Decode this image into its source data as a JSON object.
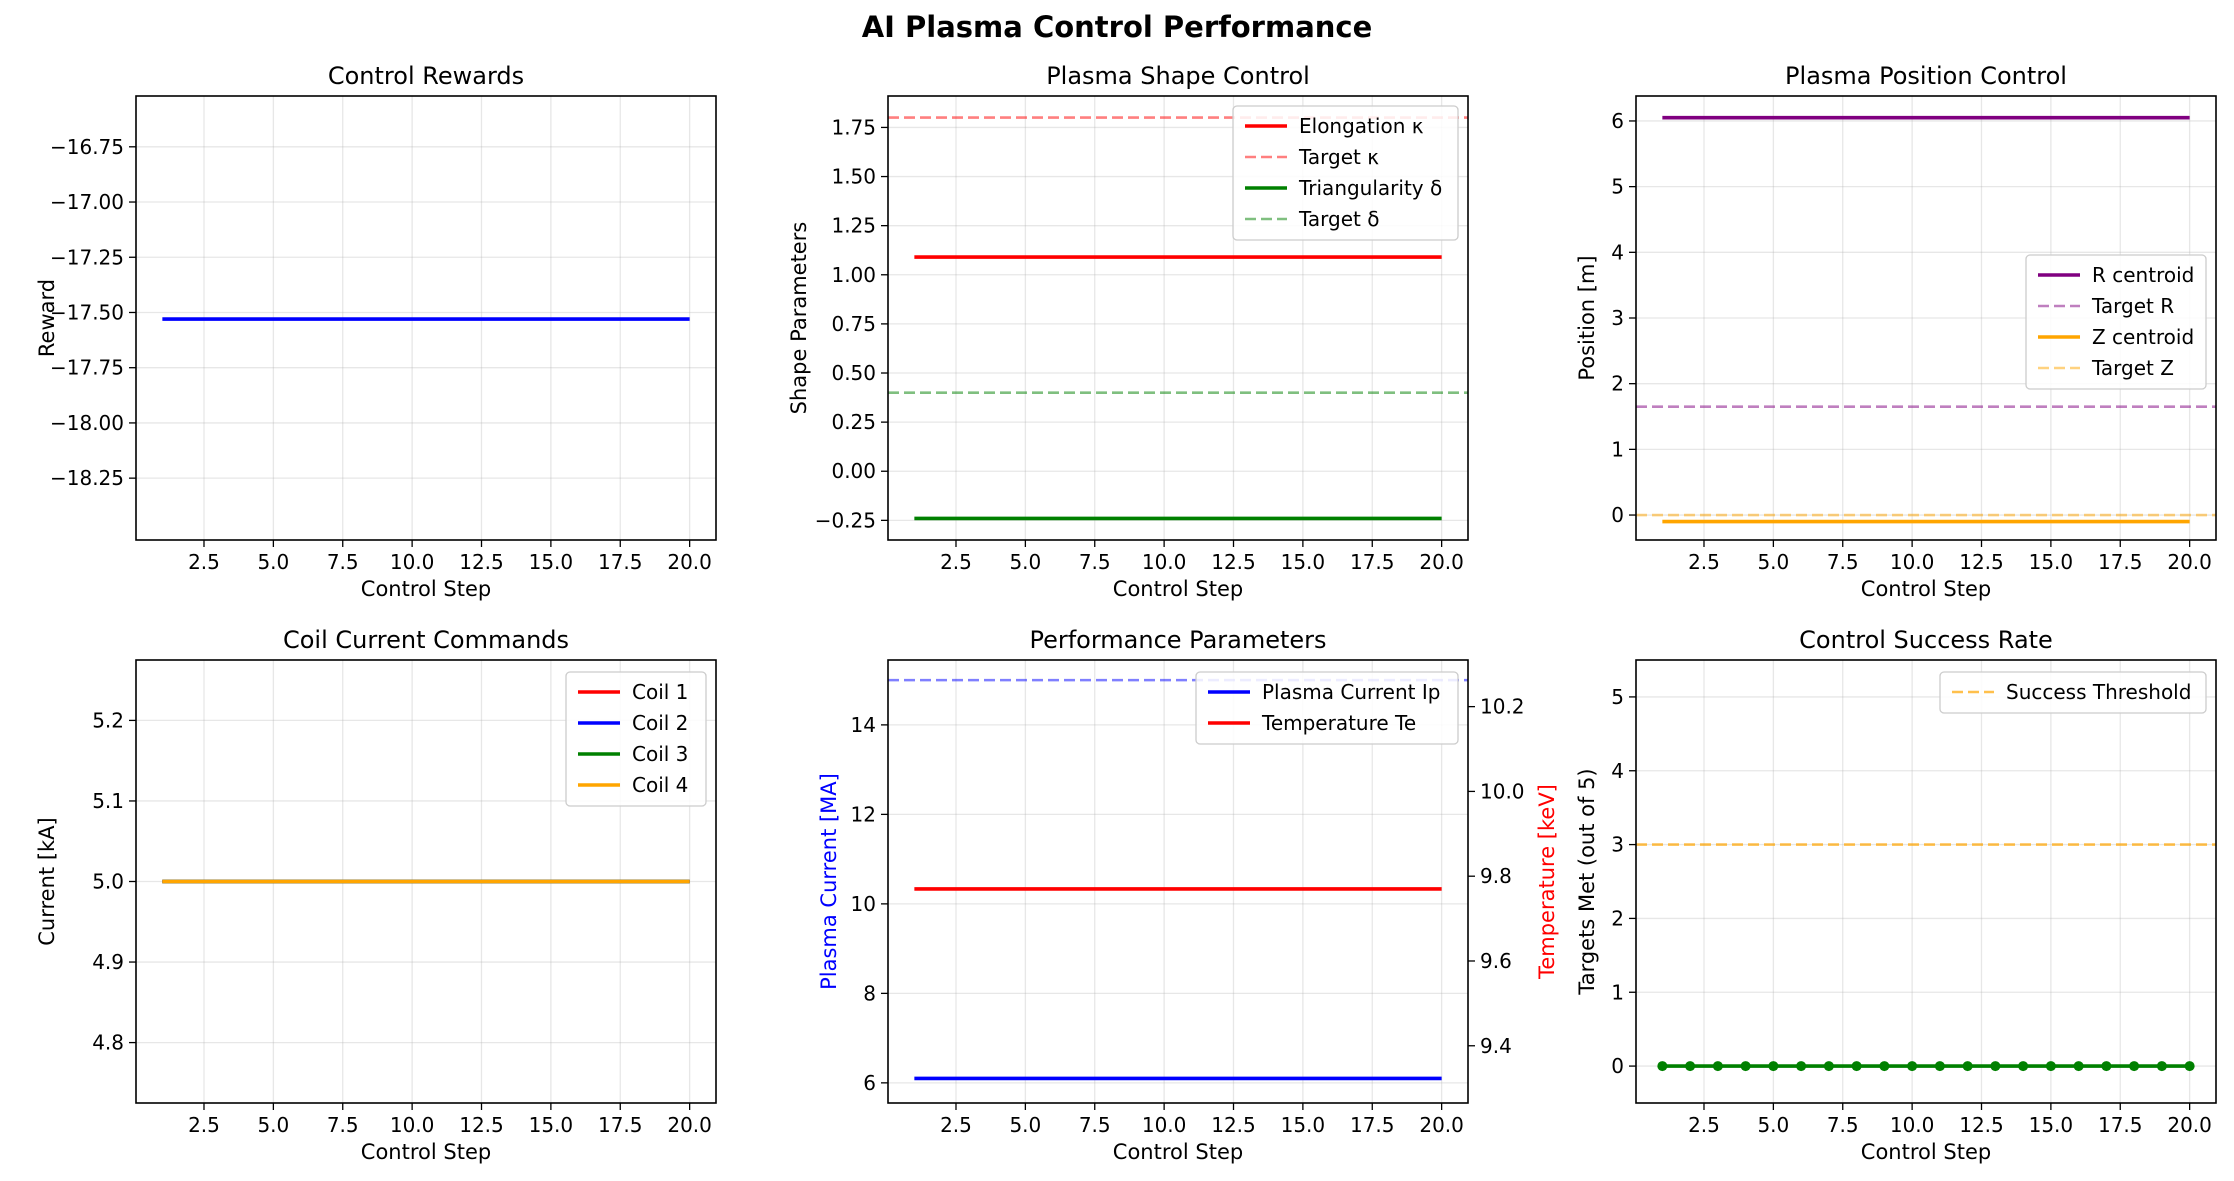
{
  "figure_title": "AI Plasma Control Performance",
  "chart_data": [
    {
      "type": "line",
      "title": "Control Rewards",
      "xlabel": "Control Step",
      "ylabel": "Reward",
      "xlim": [
        0.05,
        20.95
      ],
      "ylim": [
        -18.53,
        -16.52
      ],
      "xticks": [
        2.5,
        5.0,
        7.5,
        10.0,
        12.5,
        15.0,
        17.5,
        20.0
      ],
      "xtick_labels": [
        "2.5",
        "5.0",
        "7.5",
        "10.0",
        "12.5",
        "15.0",
        "17.5",
        "20.0"
      ],
      "yticks": [
        -18.25,
        -18.0,
        -17.75,
        -17.5,
        -17.25,
        -17.0,
        -16.75
      ],
      "ytick_labels": [
        "−18.25",
        "−18.00",
        "−17.75",
        "−17.50",
        "−17.25",
        "−17.00",
        "−16.75"
      ],
      "grid": true,
      "legend": null,
      "series": [
        {
          "color": "#0000ff",
          "style": "solid",
          "x": [
            1,
            20
          ],
          "y": [
            -17.53,
            -17.53
          ]
        }
      ]
    },
    {
      "type": "line",
      "title": "Plasma Shape Control",
      "xlabel": "Control Step",
      "ylabel": "Shape Parameters",
      "xlim": [
        0.05,
        20.95
      ],
      "ylim": [
        -0.35,
        1.91
      ],
      "xticks": [
        2.5,
        5.0,
        7.5,
        10.0,
        12.5,
        15.0,
        17.5,
        20.0
      ],
      "xtick_labels": [
        "2.5",
        "5.0",
        "7.5",
        "10.0",
        "12.5",
        "15.0",
        "17.5",
        "20.0"
      ],
      "yticks": [
        -0.25,
        0.0,
        0.25,
        0.5,
        0.75,
        1.0,
        1.25,
        1.5,
        1.75
      ],
      "ytick_labels": [
        "−0.25",
        "0.00",
        "0.25",
        "0.50",
        "0.75",
        "1.00",
        "1.25",
        "1.50",
        "1.75"
      ],
      "grid": true,
      "legend": "upper right",
      "series": [
        {
          "name": "Elongation κ",
          "color": "#ff0000",
          "style": "solid",
          "x": [
            1,
            20
          ],
          "y": [
            1.09,
            1.09
          ]
        },
        {
          "name": "Target κ",
          "color": "#ff0000",
          "style": "dashed",
          "alpha": 0.5,
          "hline": 1.8
        },
        {
          "name": "Triangularity δ",
          "color": "#008000",
          "style": "solid",
          "x": [
            1,
            20
          ],
          "y": [
            -0.24,
            -0.24
          ]
        },
        {
          "name": "Target δ",
          "color": "#008000",
          "style": "dashed",
          "alpha": 0.5,
          "hline": 0.4
        }
      ]
    },
    {
      "type": "line",
      "title": "Plasma Position Control",
      "xlabel": "Control Step",
      "ylabel": "Position [m]",
      "xlim": [
        0.05,
        20.95
      ],
      "ylim": [
        -0.38,
        6.38
      ],
      "xticks": [
        2.5,
        5.0,
        7.5,
        10.0,
        12.5,
        15.0,
        17.5,
        20.0
      ],
      "xtick_labels": [
        "2.5",
        "5.0",
        "7.5",
        "10.0",
        "12.5",
        "15.0",
        "17.5",
        "20.0"
      ],
      "yticks": [
        0,
        1,
        2,
        3,
        4,
        5,
        6
      ],
      "ytick_labels": [
        "0",
        "1",
        "2",
        "3",
        "4",
        "5",
        "6"
      ],
      "grid": true,
      "legend": "center right",
      "series": [
        {
          "name": "R centroid",
          "color": "#800080",
          "style": "solid",
          "x": [
            1,
            20
          ],
          "y": [
            6.05,
            6.05
          ]
        },
        {
          "name": "Target R",
          "color": "#800080",
          "style": "dashed",
          "alpha": 0.5,
          "hline": 1.65
        },
        {
          "name": "Z centroid",
          "color": "#ffa500",
          "style": "solid",
          "x": [
            1,
            20
          ],
          "y": [
            -0.1,
            -0.1
          ]
        },
        {
          "name": "Target Z",
          "color": "#ffa500",
          "style": "dashed",
          "alpha": 0.5,
          "hline": 0.0
        }
      ]
    },
    {
      "type": "line",
      "title": "Coil Current Commands",
      "xlabel": "Control Step",
      "ylabel": "Current [kA]",
      "xlim": [
        0.05,
        20.95
      ],
      "ylim": [
        4.725,
        5.275
      ],
      "xticks": [
        2.5,
        5.0,
        7.5,
        10.0,
        12.5,
        15.0,
        17.5,
        20.0
      ],
      "xtick_labels": [
        "2.5",
        "5.0",
        "7.5",
        "10.0",
        "12.5",
        "15.0",
        "17.5",
        "20.0"
      ],
      "yticks": [
        4.8,
        4.9,
        5.0,
        5.1,
        5.2
      ],
      "ytick_labels": [
        "4.8",
        "4.9",
        "5.0",
        "5.1",
        "5.2"
      ],
      "grid": true,
      "legend": "upper right",
      "series": [
        {
          "name": "Coil 1",
          "color": "#ff0000",
          "style": "solid",
          "x": [
            1,
            20
          ],
          "y": [
            5.0,
            5.0
          ]
        },
        {
          "name": "Coil 2",
          "color": "#0000ff",
          "style": "solid",
          "x": [
            1,
            20
          ],
          "y": [
            5.0,
            5.0
          ]
        },
        {
          "name": "Coil 3",
          "color": "#008000",
          "style": "solid",
          "x": [
            1,
            20
          ],
          "y": [
            5.0,
            5.0
          ]
        },
        {
          "name": "Coil 4",
          "color": "#ffa500",
          "style": "solid",
          "x": [
            1,
            20
          ],
          "y": [
            5.0,
            5.0
          ]
        }
      ]
    },
    {
      "type": "line",
      "title": "Performance Parameters",
      "xlabel": "Control Step",
      "ylabel": "Plasma Current [MA]",
      "ylabel_color": "#0000ff",
      "ylabel2": "Temperature [keV]",
      "ylabel2_color": "#ff0000",
      "xlim": [
        0.05,
        20.95
      ],
      "ylim": [
        5.55,
        15.45
      ],
      "ylim2": [
        9.265,
        10.31
      ],
      "xticks": [
        2.5,
        5.0,
        7.5,
        10.0,
        12.5,
        15.0,
        17.5,
        20.0
      ],
      "xtick_labels": [
        "2.5",
        "5.0",
        "7.5",
        "10.0",
        "12.5",
        "15.0",
        "17.5",
        "20.0"
      ],
      "yticks": [
        6,
        8,
        10,
        12,
        14
      ],
      "ytick_labels": [
        "6",
        "8",
        "10",
        "12",
        "14"
      ],
      "yticks2": [
        9.4,
        9.6,
        9.8,
        10.0,
        10.2
      ],
      "ytick_labels2": [
        "9.4",
        "9.6",
        "9.8",
        "10.0",
        "10.2"
      ],
      "grid": true,
      "legend": "upper right",
      "series": [
        {
          "name": "Plasma Current Ip",
          "color": "#0000ff",
          "style": "solid",
          "x": [
            1,
            20
          ],
          "y": [
            6.1,
            6.1
          ],
          "axis": "left"
        },
        {
          "color": "#0000ff",
          "style": "dashed",
          "alpha": 0.5,
          "hline": 15.0,
          "axis": "left"
        },
        {
          "name": "Temperature Te",
          "color": "#ff0000",
          "style": "solid",
          "x": [
            1,
            20
          ],
          "y": [
            9.77,
            9.77
          ],
          "axis": "right"
        }
      ]
    },
    {
      "type": "line",
      "title": "Control Success Rate",
      "xlabel": "Control Step",
      "ylabel": "Targets Met (out of 5)",
      "xlim": [
        0.05,
        20.95
      ],
      "ylim": [
        -0.5,
        5.5
      ],
      "xticks": [
        2.5,
        5.0,
        7.5,
        10.0,
        12.5,
        15.0,
        17.5,
        20.0
      ],
      "xtick_labels": [
        "2.5",
        "5.0",
        "7.5",
        "10.0",
        "12.5",
        "15.0",
        "17.5",
        "20.0"
      ],
      "yticks": [
        0,
        1,
        2,
        3,
        4,
        5
      ],
      "ytick_labels": [
        "0",
        "1",
        "2",
        "3",
        "4",
        "5"
      ],
      "grid": true,
      "legend": "upper right",
      "series": [
        {
          "color": "#008000",
          "style": "solid",
          "markers": true,
          "x": [
            1,
            2,
            3,
            4,
            5,
            6,
            7,
            8,
            9,
            10,
            11,
            12,
            13,
            14,
            15,
            16,
            17,
            18,
            19,
            20
          ],
          "y": [
            0,
            0,
            0,
            0,
            0,
            0,
            0,
            0,
            0,
            0,
            0,
            0,
            0,
            0,
            0,
            0,
            0,
            0,
            0,
            0
          ]
        },
        {
          "name": "Success Threshold",
          "color": "#ffa500",
          "style": "dashed",
          "alpha": 0.7,
          "hline": 3
        }
      ]
    }
  ]
}
